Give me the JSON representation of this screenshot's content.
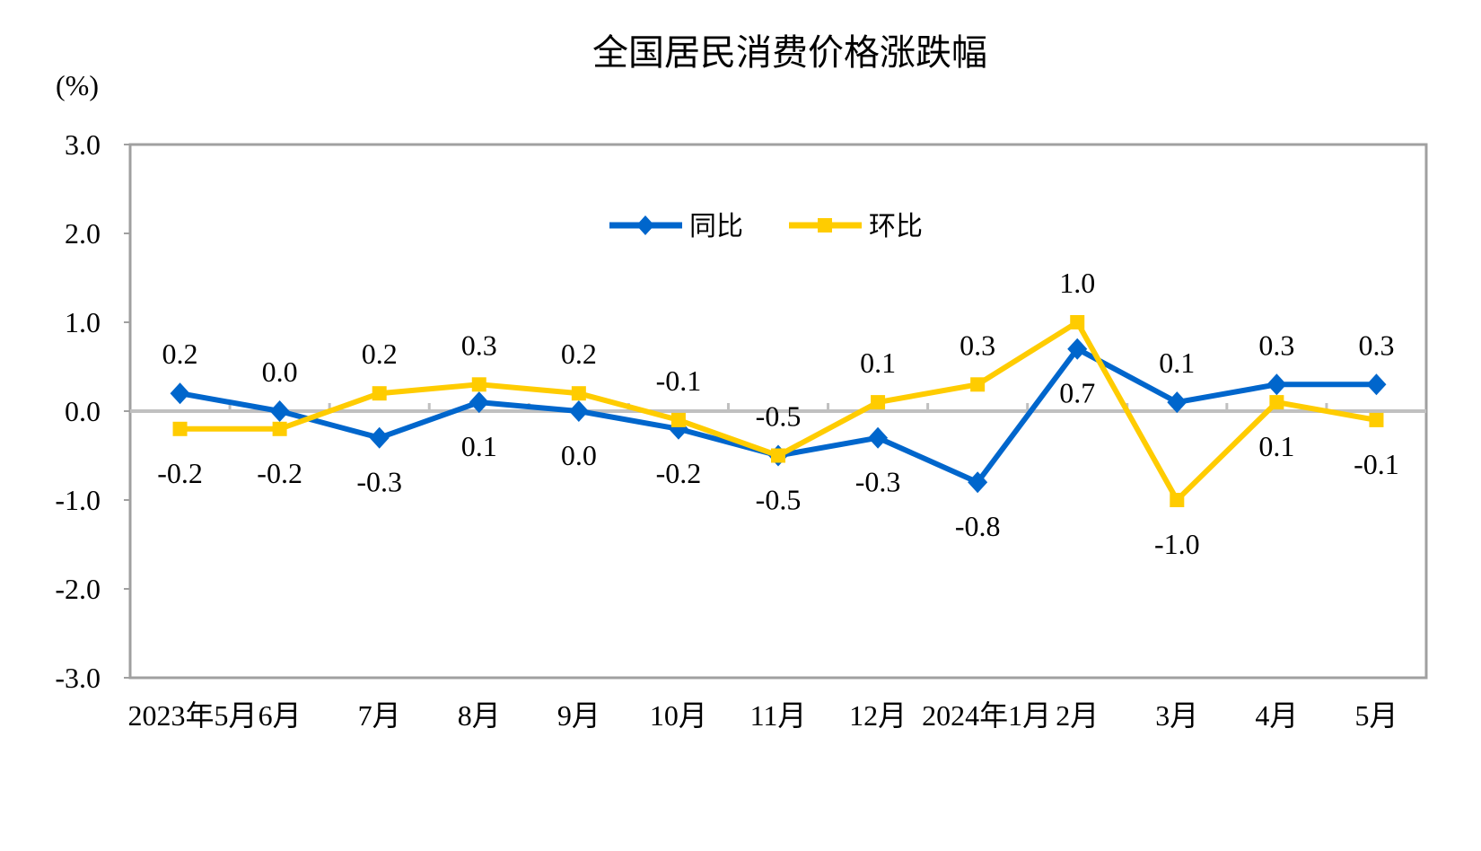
{
  "chart_data": {
    "type": "line",
    "title": "全国居民消费价格涨跌幅",
    "ylabel": "(%)",
    "xlabel": "",
    "ylim": [
      -3.0,
      3.0
    ],
    "yticks": [
      "3.0",
      "2.0",
      "1.0",
      "0.0",
      "-1.0",
      "-2.0",
      "-3.0"
    ],
    "categories": [
      "2023年5月",
      "6月",
      "7月",
      "8月",
      "9月",
      "10月",
      "11月",
      "12月",
      "2024年1月",
      "2月",
      "3月",
      "4月",
      "5月"
    ],
    "legend_position": "top-center",
    "grid": false,
    "series": [
      {
        "name": "同比",
        "color": "#0066CC",
        "marker": "diamond",
        "values": [
          0.2,
          0.0,
          -0.3,
          0.1,
          0.0,
          -0.2,
          -0.5,
          -0.3,
          -0.8,
          0.7,
          0.1,
          0.3,
          0.3
        ],
        "labels": [
          "0.2",
          "0.0",
          "-0.3",
          "0.1",
          "0.0",
          "-0.2",
          "-0.5",
          "-0.3",
          "-0.8",
          "0.7",
          "0.1",
          "0.3",
          "0.3"
        ]
      },
      {
        "name": "环比",
        "color": "#FFCC00",
        "marker": "square",
        "values": [
          -0.2,
          -0.2,
          0.2,
          0.3,
          0.2,
          -0.1,
          -0.5,
          0.1,
          0.3,
          1.0,
          -1.0,
          0.1,
          -0.1
        ],
        "labels": [
          "-0.2",
          "-0.2",
          "0.2",
          "0.3",
          "0.2",
          "-0.1",
          "-0.5",
          "0.1",
          "0.3",
          "1.0",
          "-1.0",
          "0.1",
          "-0.1"
        ]
      }
    ]
  }
}
